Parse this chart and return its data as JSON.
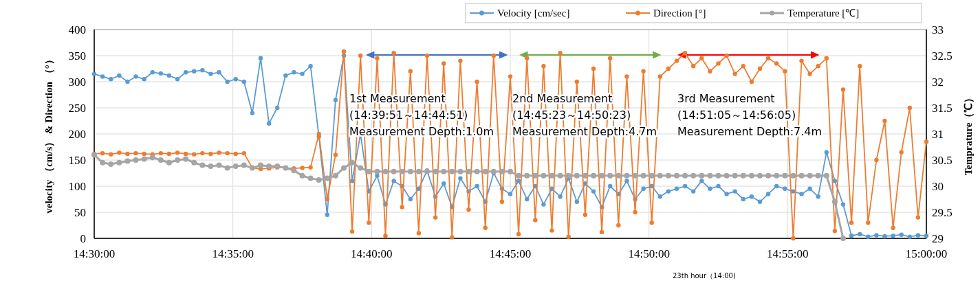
{
  "chart_data": {
    "type": "line",
    "x": [
      14.5,
      14.505,
      14.51,
      14.515,
      14.52,
      14.525,
      14.53,
      14.535,
      14.54,
      14.545,
      14.55,
      14.555,
      14.56,
      14.565,
      14.57,
      14.575,
      14.58,
      14.585,
      14.59,
      14.595,
      14.6,
      14.605,
      14.61,
      14.615,
      14.62,
      14.625,
      14.63,
      14.635,
      14.64,
      14.645,
      14.65,
      14.655,
      14.66,
      14.665,
      14.67,
      14.675,
      14.68,
      14.685,
      14.69,
      14.695,
      14.7,
      14.705,
      14.71,
      14.715,
      14.72,
      14.725,
      14.73,
      14.735,
      14.74,
      14.745,
      14.75,
      14.755,
      14.76,
      14.765,
      14.77,
      14.775,
      14.78,
      14.785,
      14.79,
      14.795,
      14.8,
      14.805,
      14.81,
      14.815,
      14.82,
      14.825,
      14.83,
      14.835,
      14.84,
      14.845,
      14.85,
      14.855,
      14.86,
      14.865,
      14.87,
      14.875,
      14.88,
      14.885,
      14.89,
      14.895,
      14.9,
      14.905,
      14.91,
      14.915,
      14.92,
      14.925,
      14.93,
      14.935,
      14.94,
      14.945,
      14.95,
      14.955,
      14.96,
      14.965,
      14.97,
      14.975,
      14.98,
      14.985,
      14.99,
      14.995,
      15.0
    ],
    "series": [
      {
        "name": "Velocity [cm/sec]",
        "color": "#5b9bd5",
        "values": [
          315,
          310,
          305,
          312,
          300,
          310,
          305,
          318,
          316,
          312,
          305,
          318,
          320,
          322,
          315,
          318,
          300,
          305,
          300,
          240,
          345,
          220,
          250,
          312,
          318,
          315,
          330,
          195,
          45,
          265,
          350,
          110,
          200,
          90,
          120,
          65,
          110,
          100,
          75,
          95,
          130,
          80,
          105,
          60,
          115,
          90,
          100,
          70,
          125,
          95,
          85,
          110,
          75,
          100,
          65,
          95,
          80,
          115,
          70,
          105,
          90,
          60,
          100,
          85,
          110,
          75,
          95,
          100,
          80,
          90,
          95,
          100,
          90,
          110,
          95,
          100,
          85,
          90,
          75,
          80,
          70,
          85,
          100,
          95,
          90,
          85,
          95,
          80,
          165,
          110,
          65,
          5,
          8,
          3,
          6,
          4,
          5,
          7,
          3,
          6,
          5
        ]
      },
      {
        "name": "Direction [°]",
        "color": "#ed7d31",
        "values": [
          162,
          163,
          161,
          164,
          162,
          163,
          162,
          161,
          163,
          162,
          164,
          162,
          161,
          163,
          162,
          164,
          163,
          162,
          163,
          135,
          133,
          134,
          136,
          135,
          134,
          135,
          136,
          200,
          75,
          160,
          358,
          13,
          350,
          30,
          345,
          5,
          355,
          60,
          320,
          10,
          350,
          40,
          335,
          2,
          340,
          55,
          300,
          20,
          350,
          70,
          310,
          8,
          345,
          35,
          330,
          15,
          355,
          3,
          300,
          45,
          325,
          12,
          345,
          25,
          310,
          50,
          320,
          30,
          310,
          325,
          340,
          355,
          330,
          345,
          320,
          335,
          350,
          315,
          330,
          300,
          325,
          345,
          335,
          320,
          0,
          340,
          315,
          330,
          345,
          14,
          285,
          30,
          330,
          30,
          150,
          225,
          20,
          165,
          250,
          40,
          185
        ]
      },
      {
        "name": "Temperature [℃]",
        "color": "#a5a5a5",
        "axis": "y2",
        "values": [
          30.6,
          30.45,
          30.42,
          30.45,
          30.48,
          30.5,
          30.52,
          30.55,
          30.5,
          30.45,
          30.5,
          30.52,
          30.45,
          30.4,
          30.38,
          30.4,
          30.35,
          30.38,
          30.4,
          30.35,
          30.4,
          30.38,
          30.38,
          30.35,
          30.3,
          30.2,
          30.15,
          30.12,
          30.15,
          30.2,
          30.35,
          30.45,
          30.35,
          30.28,
          30.28,
          30.28,
          30.28,
          30.28,
          30.28,
          30.28,
          30.28,
          30.28,
          30.28,
          30.28,
          30.28,
          30.28,
          30.28,
          30.28,
          30.28,
          30.28,
          30.28,
          30.2,
          30.2,
          30.2,
          30.2,
          30.2,
          30.2,
          30.2,
          30.2,
          30.2,
          30.2,
          30.2,
          30.2,
          30.2,
          30.2,
          30.2,
          30.2,
          30.2,
          30.2,
          30.2,
          30.2,
          30.2,
          30.2,
          30.2,
          30.2,
          30.2,
          30.2,
          30.2,
          30.2,
          30.2,
          30.2,
          30.2,
          30.2,
          30.2,
          30.2,
          30.2,
          30.2,
          30.2,
          30.2,
          29.7,
          29.0,
          null,
          null,
          null,
          null,
          null,
          null,
          null,
          null,
          null,
          null
        ]
      }
    ],
    "xlim": [
      14.5,
      15.0
    ],
    "xticks": [
      {
        "value": 14.5,
        "label": "14:30:00"
      },
      {
        "value": 14.583333,
        "label": "14:35:00"
      },
      {
        "value": 14.666667,
        "label": "14:40:00"
      },
      {
        "value": 14.75,
        "label": "14:45:00"
      },
      {
        "value": 14.833333,
        "label": "14:50:00"
      },
      {
        "value": 14.916667,
        "label": "14:55:00"
      },
      {
        "value": 15.0,
        "label": "15:00:00"
      }
    ],
    "ylim": [
      0,
      400
    ],
    "yticks": [
      0,
      50,
      100,
      150,
      200,
      250,
      300,
      350,
      400
    ],
    "y2lim": [
      29,
      33
    ],
    "y2ticks": [
      29,
      29.5,
      30,
      30.5,
      31,
      31.5,
      32,
      32.5,
      33
    ],
    "ylabel": "velocity （cm/s） & Direction （°）",
    "y2label": "Temprature（℃）",
    "annotations": [
      "1st Measurement",
      "(14:39:51～14:44:51)",
      "Measurement Depth:1.0m",
      "2nd Measurement",
      "(14:45:23～14:50:23)",
      "Measurement Depth:4.7m",
      "3rd Measurement",
      "(14:51:05～14:56:05)",
      "Measurement Depth:7.4m",
      "23th hour（14:00)"
    ],
    "grid": true,
    "legend": "top right",
    "marker": "circle",
    "line_style": "solid"
  }
}
